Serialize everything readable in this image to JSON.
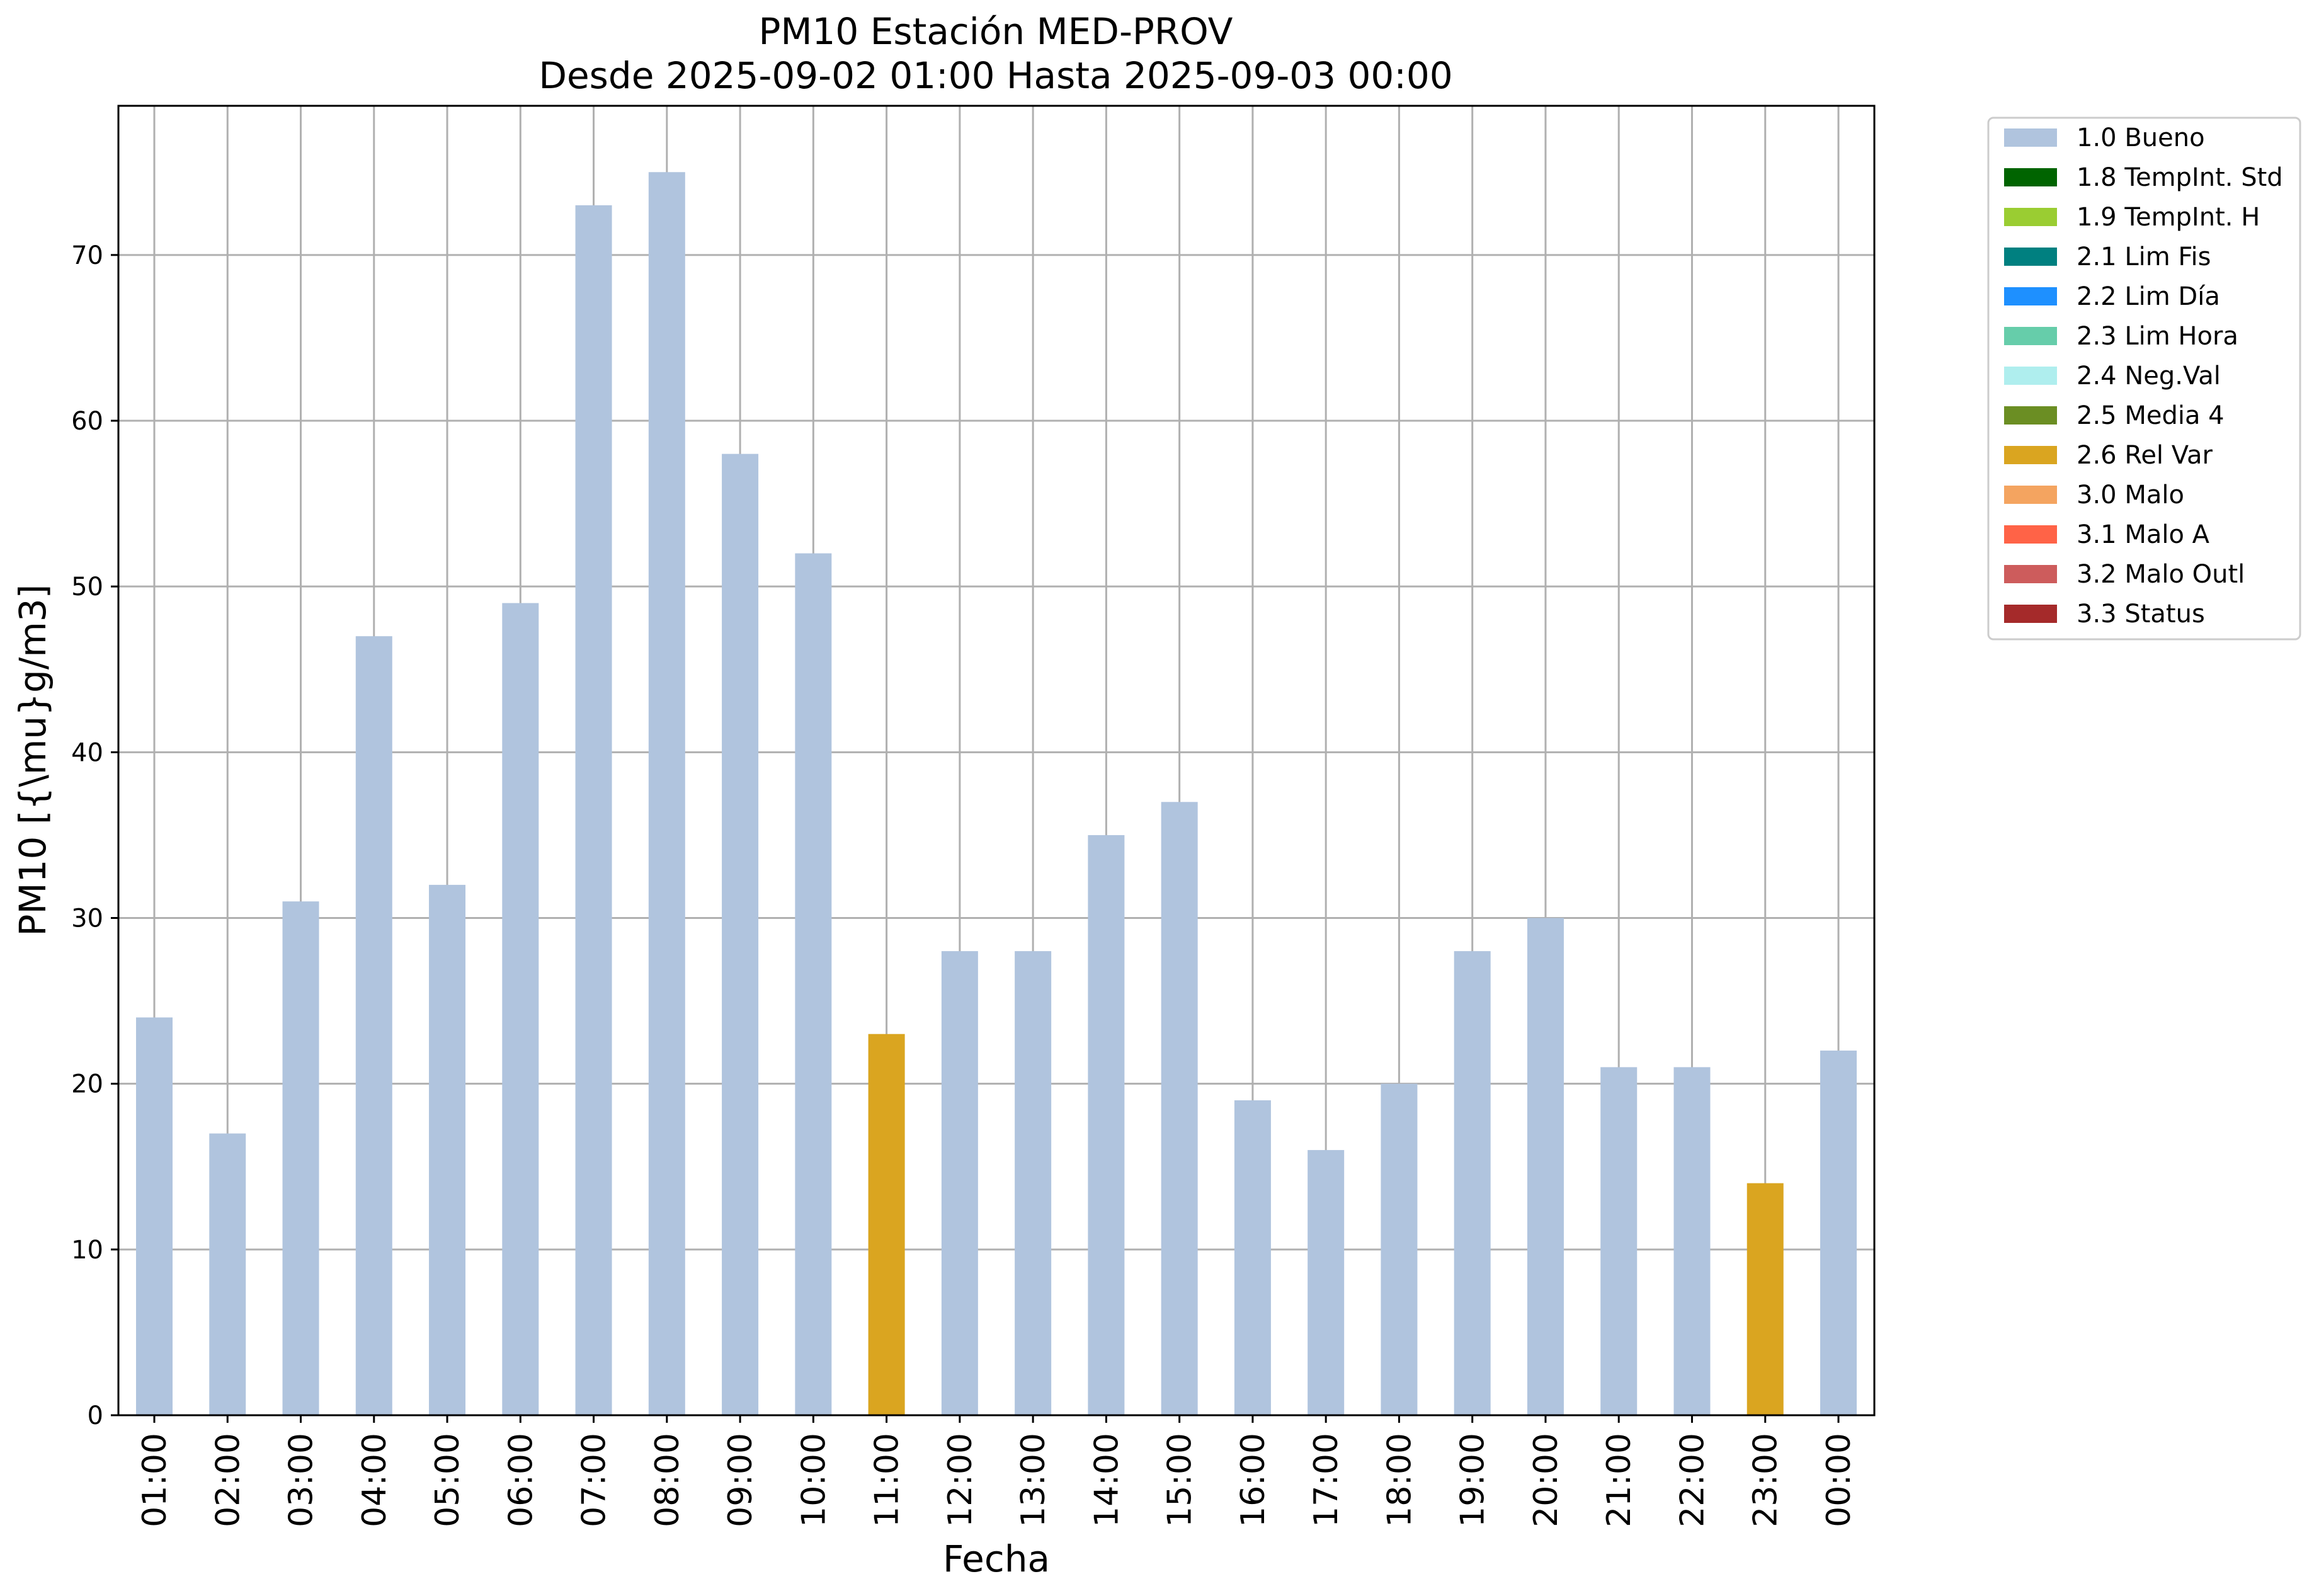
{
  "chart_data": {
    "type": "bar",
    "title": "PM10 Estación MED-PROV",
    "subtitle": "Desde 2025-09-02 01:00 Hasta 2025-09-03 00:00",
    "xlabel": "Fecha",
    "ylabel": "PM10 [{\\mu}g/m3]",
    "ylim": [
      0,
      79
    ],
    "yticks": [
      0,
      10,
      20,
      30,
      40,
      50,
      60,
      70
    ],
    "grid": true,
    "legend_position": "outside-top-right",
    "categories": [
      "01:00",
      "02:00",
      "03:00",
      "04:00",
      "05:00",
      "06:00",
      "07:00",
      "08:00",
      "09:00",
      "10:00",
      "11:00",
      "12:00",
      "13:00",
      "14:00",
      "15:00",
      "16:00",
      "17:00",
      "18:00",
      "19:00",
      "20:00",
      "21:00",
      "22:00",
      "23:00",
      "00:00"
    ],
    "values": [
      24,
      17,
      31,
      47,
      32,
      49,
      73,
      75,
      58,
      52,
      23,
      28,
      28,
      35,
      37,
      19,
      16,
      20,
      28,
      30,
      21,
      21,
      14,
      22
    ],
    "flags": [
      "1.0 Bueno",
      "1.0 Bueno",
      "1.0 Bueno",
      "1.0 Bueno",
      "1.0 Bueno",
      "1.0 Bueno",
      "1.0 Bueno",
      "1.0 Bueno",
      "1.0 Bueno",
      "1.0 Bueno",
      "2.6 Rel Var",
      "1.0 Bueno",
      "1.0 Bueno",
      "1.0 Bueno",
      "1.0 Bueno",
      "1.0 Bueno",
      "1.0 Bueno",
      "1.0 Bueno",
      "1.0 Bueno",
      "1.0 Bueno",
      "1.0 Bueno",
      "1.0 Bueno",
      "2.6 Rel Var",
      "1.0 Bueno"
    ],
    "legend": [
      {
        "label": "1.0 Bueno",
        "color": "#b0c4de"
      },
      {
        "label": "1.8 TempInt. Std",
        "color": "#006400"
      },
      {
        "label": "1.9 TempInt. H",
        "color": "#9acd32"
      },
      {
        "label": "2.1 Lim Fis",
        "color": "#008080"
      },
      {
        "label": "2.2 Lim Día",
        "color": "#1e90ff"
      },
      {
        "label": "2.3 Lim Hora",
        "color": "#66cdaa"
      },
      {
        "label": "2.4 Neg.Val",
        "color": "#afeeee"
      },
      {
        "label": "2.5 Media 4",
        "color": "#6b8e23"
      },
      {
        "label": "2.6 Rel Var",
        "color": "#daa520"
      },
      {
        "label": "3.0 Malo",
        "color": "#f4a460"
      },
      {
        "label": "3.1 Malo A",
        "color": "#ff6347"
      },
      {
        "label": "3.2 Malo Outl",
        "color": "#cd5c5c"
      },
      {
        "label": "3.3 Status",
        "color": "#a52a2a"
      }
    ]
  }
}
